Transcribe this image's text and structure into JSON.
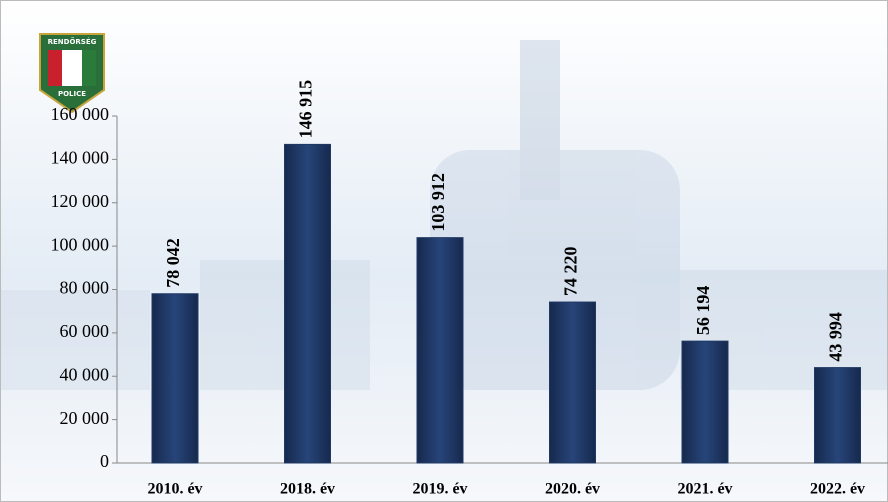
{
  "logo": {
    "top": "RENDŐRSÉG",
    "bottom": "POLICE"
  },
  "chart_data": {
    "type": "bar",
    "categories": [
      "2010. év",
      "2018. év",
      "2019. év",
      "2020. év",
      "2021. év",
      "2022. év"
    ],
    "values": [
      78042,
      146915,
      103912,
      74220,
      56194,
      43994
    ],
    "value_labels": [
      "78 042",
      "146 915",
      "103 912",
      "74 220",
      "56 194",
      "43 994"
    ],
    "color": "#1f3864",
    "ylim": [
      0,
      160000
    ],
    "yticks": [
      0,
      {
        "value": 20000,
        "label": "20 000"
      },
      {
        "value": 40000,
        "label": "40 000"
      },
      {
        "value": 60000,
        "label": "60 000"
      },
      {
        "value": 80000,
        "label": "80 000"
      },
      {
        "value": 100000,
        "label": "100 000"
      },
      {
        "value": 120000,
        "label": "120 000"
      },
      {
        "value": 140000,
        "label": "140 000"
      },
      {
        "value": 160000,
        "label": "160 000"
      }
    ],
    "grid": false
  }
}
